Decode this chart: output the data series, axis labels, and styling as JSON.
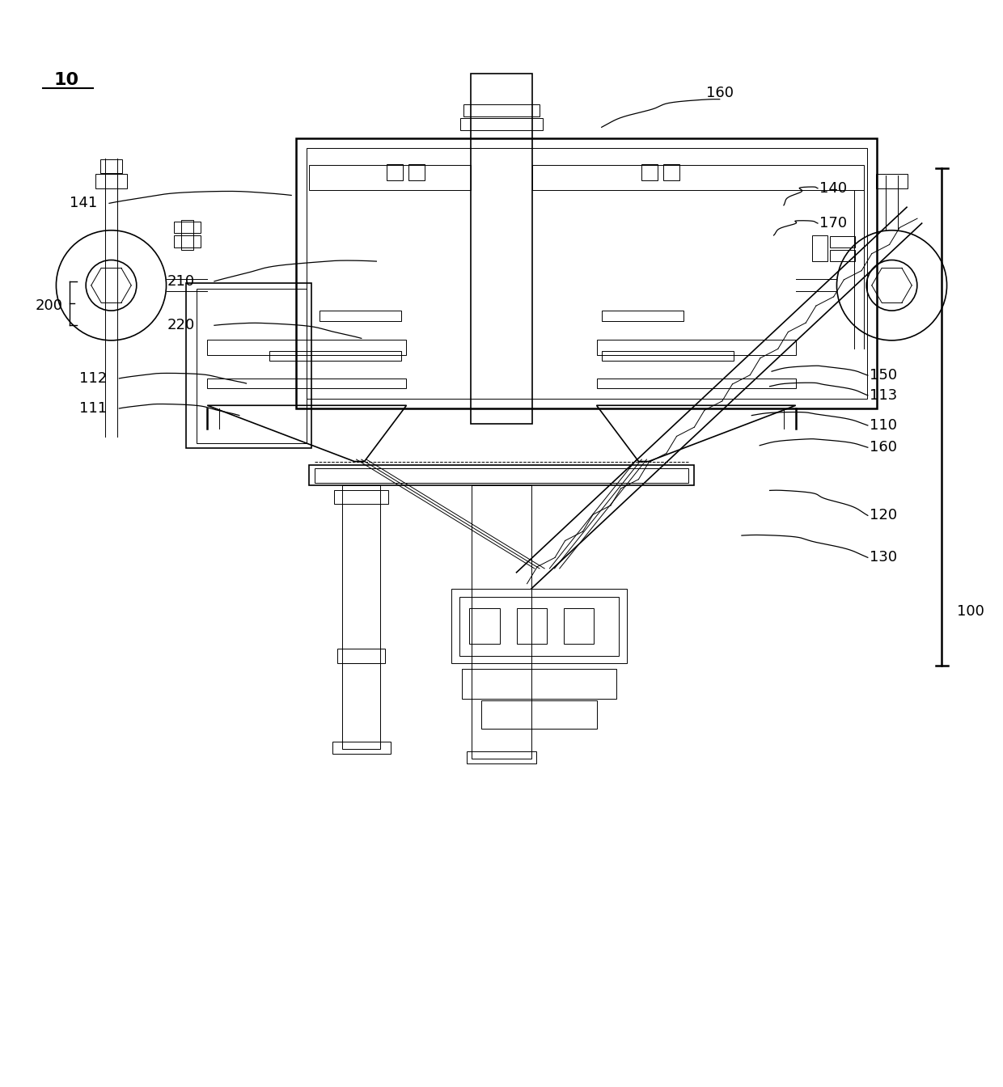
{
  "bg_color": "#ffffff",
  "line_color": "#000000",
  "fig_width": 12.4,
  "fig_height": 13.44
}
